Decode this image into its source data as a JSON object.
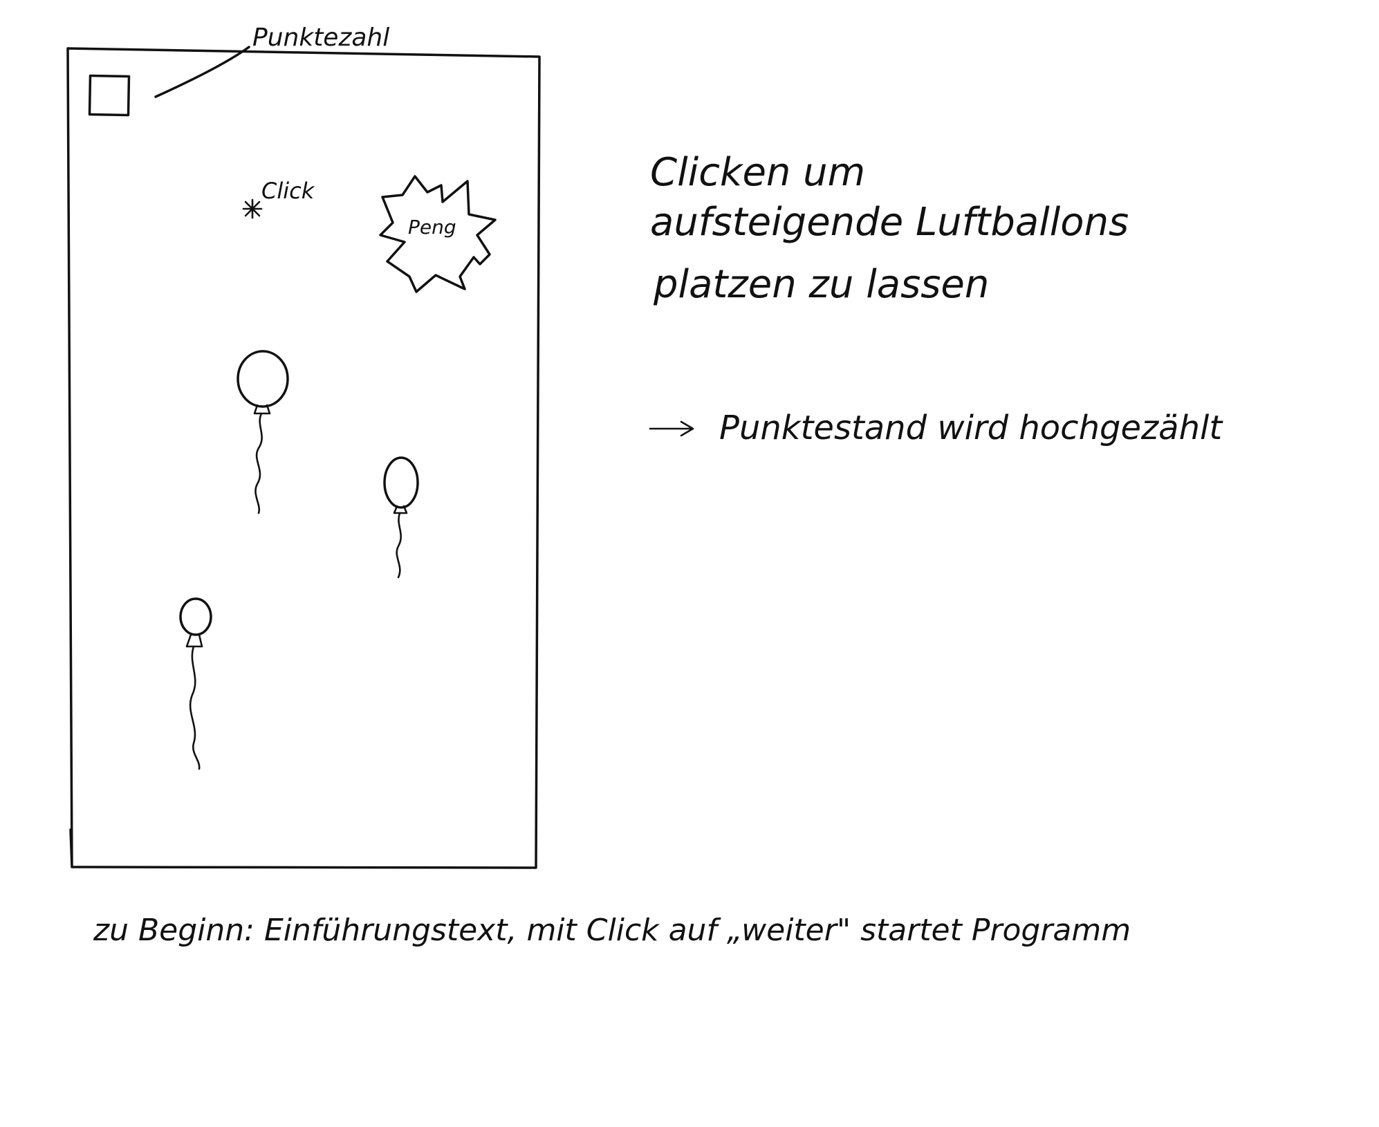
{
  "labels": {
    "score_label": "Punktezahl",
    "click_label": "Click",
    "burst_label": "Peng"
  },
  "notes": {
    "instruction_lines": [
      "Clicken um",
      "aufsteigende Luftballons",
      "platzen zu lassen"
    ],
    "score_note": "Punktestand wird hochgezählt",
    "intro_note": "zu Beginn: Einführungstext, mit Click auf „weiter\" startet Programm"
  },
  "icons": {
    "score_box": "square-icon",
    "click_marker": "star-icon",
    "burst": "explosion-icon",
    "balloon": "balloon-icon",
    "arrow": "arrow-right-icon"
  },
  "colors": {
    "ink": "#111111",
    "paper": "#ffffff"
  }
}
